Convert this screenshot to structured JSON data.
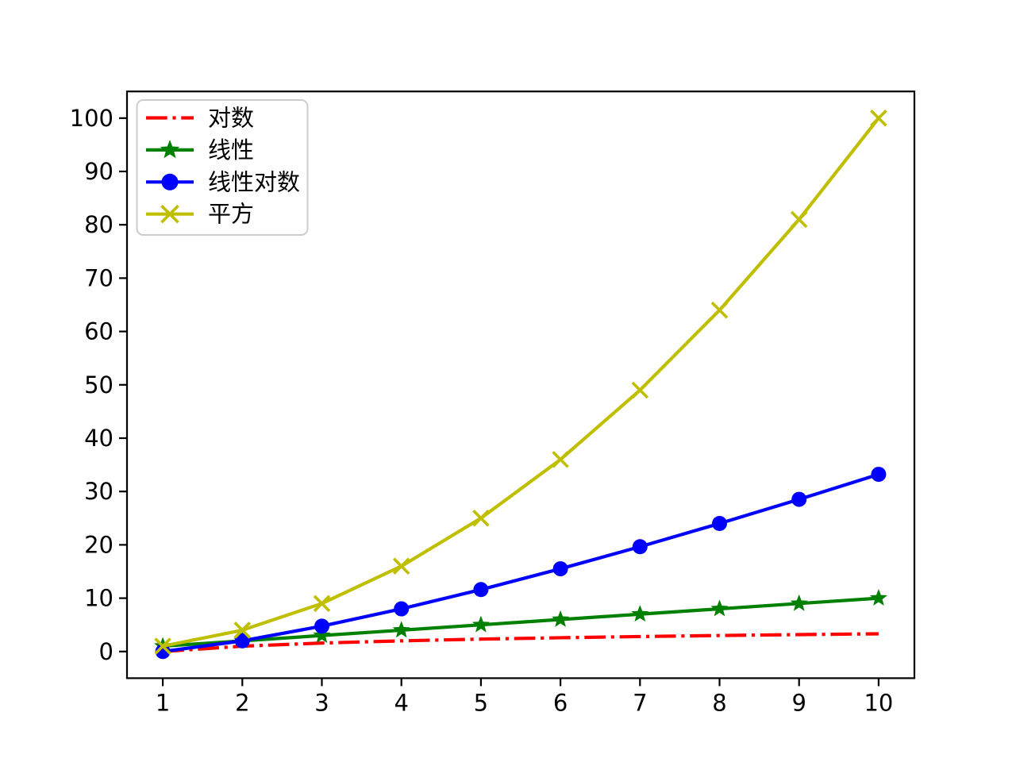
{
  "figure": {
    "background": "#ffffff",
    "spine_color": "#000000",
    "tick_color": "#000000"
  },
  "chart_data": {
    "type": "line",
    "title": "",
    "xlabel": "",
    "ylabel": "",
    "grid": false,
    "x": [
      1,
      2,
      3,
      4,
      5,
      6,
      7,
      8,
      9,
      10
    ],
    "series": [
      {
        "id": "log",
        "name": "对数",
        "color": "#ff0000",
        "linestyle": "dashdot",
        "marker": "none",
        "values": [
          0.0,
          1.0,
          1.585,
          2.0,
          2.322,
          2.585,
          2.807,
          3.0,
          3.17,
          3.322
        ]
      },
      {
        "id": "linear",
        "name": "线性",
        "color": "#008000",
        "linestyle": "solid",
        "marker": "star",
        "values": [
          1,
          2,
          3,
          4,
          5,
          6,
          7,
          8,
          9,
          10
        ]
      },
      {
        "id": "linear-log",
        "name": "线性对数",
        "color": "#0000ff",
        "linestyle": "solid",
        "marker": "circle",
        "values": [
          0.0,
          2.0,
          4.755,
          8.0,
          11.61,
          15.51,
          19.651,
          24.0,
          28.529,
          33.219
        ]
      },
      {
        "id": "square",
        "name": "平方",
        "color": "#bfbf00",
        "linestyle": "solid",
        "marker": "x",
        "values": [
          1,
          4,
          9,
          16,
          25,
          36,
          49,
          64,
          81,
          100
        ]
      }
    ],
    "xticks": [
      "1",
      "2",
      "3",
      "4",
      "5",
      "6",
      "7",
      "8",
      "9",
      "10"
    ],
    "xtick_values": [
      1,
      2,
      3,
      4,
      5,
      6,
      7,
      8,
      9,
      10
    ],
    "yticks": [
      "0",
      "10",
      "20",
      "30",
      "40",
      "50",
      "60",
      "70",
      "80",
      "90",
      "100"
    ],
    "ytick_values": [
      0,
      10,
      20,
      30,
      40,
      50,
      60,
      70,
      80,
      90,
      100
    ],
    "xlim": [
      0.55,
      10.45
    ],
    "ylim": [
      -5,
      105
    ],
    "legend": {
      "position": "upper-left",
      "entries": [
        "对数",
        "线性",
        "线性对数",
        "平方"
      ]
    }
  }
}
